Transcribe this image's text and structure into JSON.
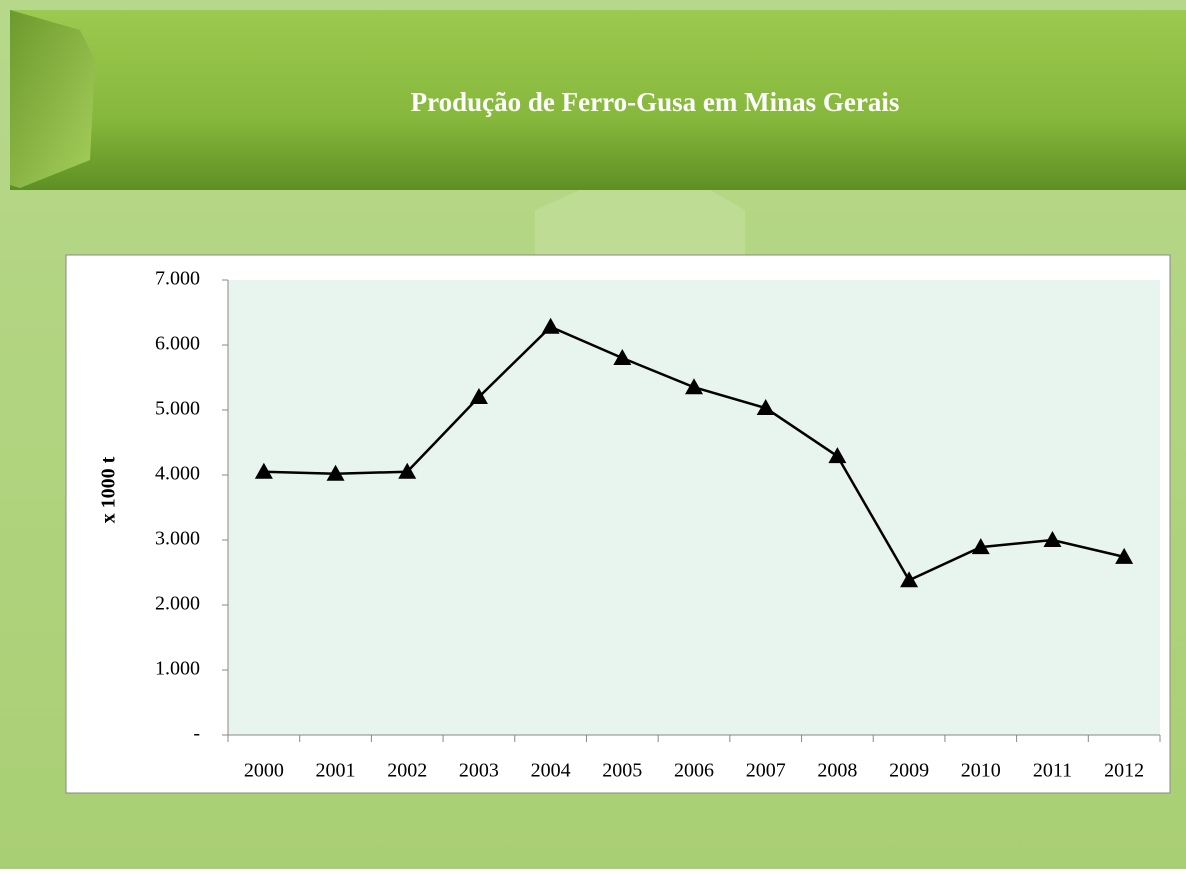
{
  "chart_data": {
    "type": "line",
    "title": "Produção de Ferro-Gusa em Minas Gerais",
    "y_label": "x 1000 t",
    "categories": [
      "2000",
      "2001",
      "2002",
      "2003",
      "2004",
      "2005",
      "2006",
      "2007",
      "2008",
      "2009",
      "2010",
      "2011",
      "2012"
    ],
    "series": [
      {
        "name": "Ferro-Gusa",
        "color": "#000000",
        "marker": "triangle",
        "values": [
          4050,
          4020,
          4050,
          5200,
          6280,
          5800,
          5350,
          5030,
          4290,
          2380,
          2890,
          3000,
          2740
        ]
      }
    ],
    "ylim": [
      0,
      7000
    ],
    "yticks": [
      {
        "value": 0,
        "label": "-"
      },
      {
        "value": 1000,
        "label": "1.000"
      },
      {
        "value": 2000,
        "label": "2.000"
      },
      {
        "value": 3000,
        "label": "3.000"
      },
      {
        "value": 4000,
        "label": "4.000"
      },
      {
        "value": 5000,
        "label": "5.000"
      },
      {
        "value": 6000,
        "label": "6.000"
      },
      {
        "value": 7000,
        "label": "7.000"
      }
    ],
    "grid": false,
    "legend": false
  }
}
